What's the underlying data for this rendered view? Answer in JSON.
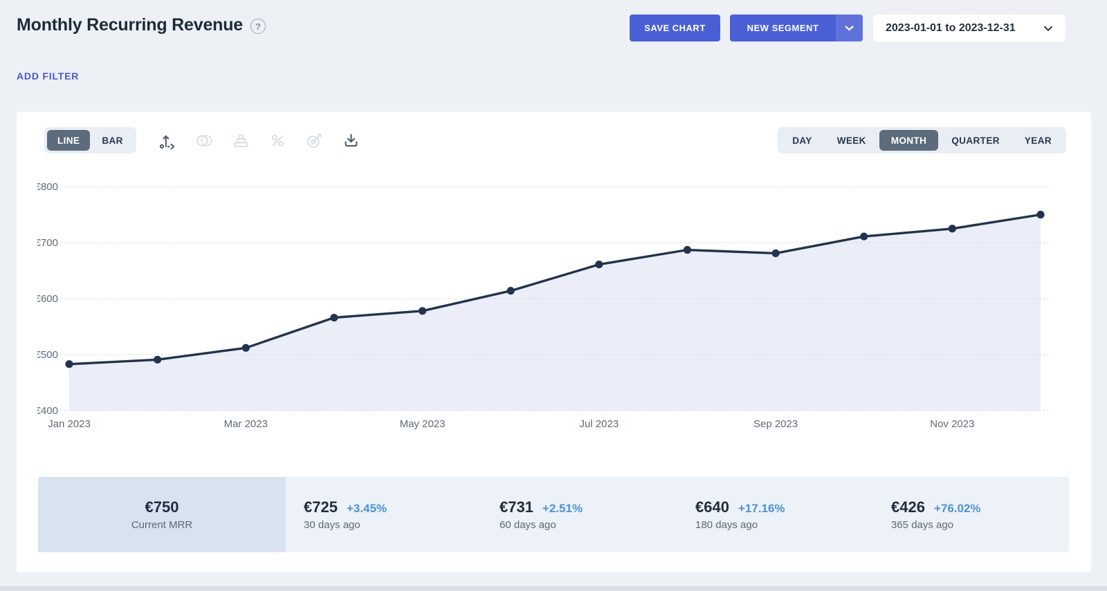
{
  "header": {
    "title": "Monthly Recurring Revenue",
    "help_icon": "question-mark-circle",
    "save_chart_label": "SAVE CHART",
    "new_segment_label": "NEW SEGMENT",
    "date_range_value": "2023-01-01 to 2023-12-31"
  },
  "filter_bar": {
    "add_filter_label": "ADD FILTER"
  },
  "toolbar": {
    "chart_type": {
      "options": [
        "LINE",
        "BAR"
      ],
      "active": "LINE"
    },
    "tools": [
      {
        "name": "axis-scale",
        "enabled": true
      },
      {
        "name": "compare-segments",
        "enabled": false
      },
      {
        "name": "cohorts",
        "enabled": false
      },
      {
        "name": "percentage",
        "enabled": false
      },
      {
        "name": "goals",
        "enabled": false
      },
      {
        "name": "download-export",
        "enabled": true
      }
    ],
    "period": {
      "options": [
        "DAY",
        "WEEK",
        "MONTH",
        "QUARTER",
        "YEAR"
      ],
      "active": "MONTH"
    }
  },
  "chart_data": {
    "type": "area",
    "title": "Monthly Recurring Revenue",
    "x": [
      "Jan 2023",
      "Feb 2023",
      "Mar 2023",
      "Apr 2023",
      "May 2023",
      "Jun 2023",
      "Jul 2023",
      "Aug 2023",
      "Sep 2023",
      "Oct 2023",
      "Nov 2023",
      "Dec 2023"
    ],
    "values": [
      483,
      491,
      512,
      566,
      578,
      614,
      661,
      687,
      681,
      711,
      725,
      750
    ],
    "x_tick_labels": [
      "Jan 2023",
      "Mar 2023",
      "May 2023",
      "Jul 2023",
      "Sep 2023",
      "Nov 2023"
    ],
    "ylim": [
      400,
      800
    ],
    "y_step": 100,
    "currency_prefix": "€",
    "grid": "dotted-horizontal",
    "legend": "none",
    "line_color": "#22334d",
    "fill_color": "#ebeef8",
    "grid_color": "#d6dae1",
    "axis_label_color": "#5e6a79"
  },
  "stats": [
    {
      "value": "€750",
      "pct": "",
      "label": "Current MRR",
      "highlight": true
    },
    {
      "value": "€725",
      "pct": "+3.45%",
      "label": "30 days ago",
      "highlight": false
    },
    {
      "value": "€731",
      "pct": "+2.51%",
      "label": "60 days ago",
      "highlight": false
    },
    {
      "value": "€640",
      "pct": "+17.16%",
      "label": "180 days ago",
      "highlight": false
    },
    {
      "value": "€426",
      "pct": "+76.02%",
      "label": "365 days ago",
      "highlight": false
    }
  ],
  "colors": {
    "accent_primary": "#4a5fd6",
    "accent_primary_light": "#5f72dc",
    "active_toggle": "#5d6c7c",
    "stat_pct_blue": "#4a93d8",
    "highlight_cell": "#d8e3f0",
    "page_background": "#edf1f6"
  }
}
